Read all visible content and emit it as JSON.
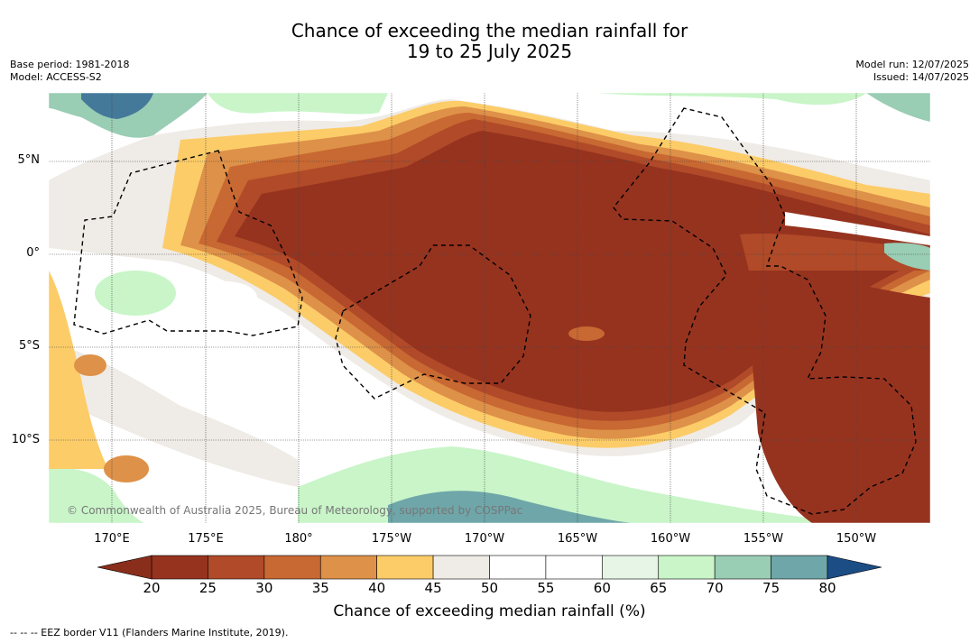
{
  "title": {
    "line1": "Chance of exceeding the median rainfall for",
    "line2": "19 to 25 July 2025"
  },
  "meta_left": {
    "base_period": "Base period: 1981-2018",
    "model": "Model: ACCESS-S2"
  },
  "meta_right": {
    "model_run": "Model run: 12/07/2025",
    "issued": "Issued: 14/07/2025"
  },
  "map": {
    "lon_ticks": [
      "170°E",
      "175°E",
      "180°",
      "175°W",
      "170°W",
      "165°W",
      "160°W",
      "155°W",
      "150°W"
    ],
    "lat_ticks": [
      "5°N",
      "0°",
      "5°S",
      "10°S"
    ],
    "copyright": "© Commonwealth of Australia 2025, Bureau of Meteorology, supported by COSPPac",
    "grid": true,
    "eez_style": "dashed"
  },
  "colorbar": {
    "ticks": [
      "20",
      "25",
      "30",
      "35",
      "40",
      "45",
      "50",
      "55",
      "60",
      "65",
      "70",
      "75",
      "80"
    ],
    "colors": [
      "#96331f",
      "#b04a28",
      "#c86832",
      "#de9148",
      "#fccc68",
      "#efebe6",
      "#ffffff",
      "#ffffff",
      "#e6f5e6",
      "#c9f5c9",
      "#99cdb4",
      "#6fa6a9",
      "#44799a"
    ],
    "under_color": "#8a2e1c",
    "over_color": "#1c4d85",
    "label": "Chance of exceeding median rainfall (%)"
  },
  "footnote": "--  --  -- EEZ border V11 (Flanders Marine Institute, 2019)."
}
